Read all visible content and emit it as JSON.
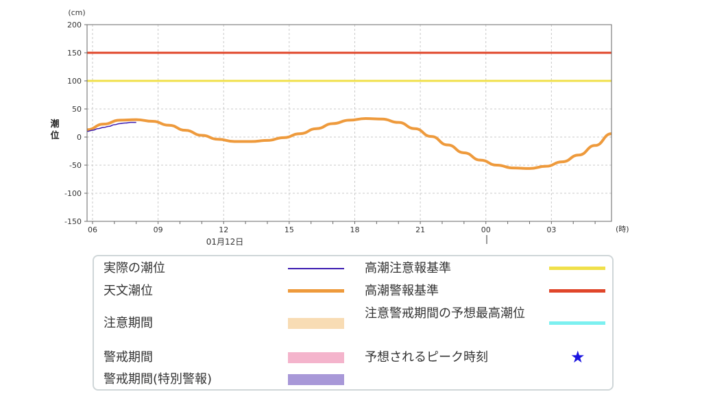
{
  "chart_data": {
    "type": "line",
    "unit_label": "(cm)",
    "ylabel": "潮位",
    "xunit_label": "(時)",
    "date_label": "01月12日",
    "ylim": [
      -150,
      200
    ],
    "yticks": [
      200,
      150,
      100,
      50,
      0,
      -50,
      -100,
      -150
    ],
    "x_start_hour": 5.75,
    "x_end_hour": 29.75,
    "xticks": [
      {
        "hour": 6,
        "label": "06"
      },
      {
        "hour": 9,
        "label": "09"
      },
      {
        "hour": 12,
        "label": "12"
      },
      {
        "hour": 15,
        "label": "15"
      },
      {
        "hour": 18,
        "label": "18"
      },
      {
        "hour": 21,
        "label": "21"
      },
      {
        "hour": 24,
        "label": "00"
      },
      {
        "hour": 27,
        "label": "03"
      }
    ],
    "grid": true,
    "thresholds": [
      {
        "name": "高潮警報基準",
        "value": 150,
        "color": "#e0462a"
      },
      {
        "name": "高潮注意報基準",
        "value": 100,
        "color": "#f0e04a"
      }
    ],
    "series": [
      {
        "name": "天文潮位",
        "color": "#ee9a3c",
        "points": [
          [
            5.75,
            13
          ],
          [
            6.5,
            23
          ],
          [
            7.25,
            30
          ],
          [
            8,
            31
          ],
          [
            8.75,
            28
          ],
          [
            9.5,
            21
          ],
          [
            10.25,
            12
          ],
          [
            11,
            3
          ],
          [
            11.75,
            -4
          ],
          [
            12.5,
            -8
          ],
          [
            13.25,
            -8
          ],
          [
            14,
            -6
          ],
          [
            14.75,
            -1
          ],
          [
            15.5,
            6
          ],
          [
            16.25,
            15
          ],
          [
            17,
            24
          ],
          [
            17.75,
            30
          ],
          [
            18.5,
            33
          ],
          [
            19.25,
            32
          ],
          [
            20,
            26
          ],
          [
            20.75,
            15
          ],
          [
            21.5,
            1
          ],
          [
            22.25,
            -14
          ],
          [
            23,
            -28
          ],
          [
            23.75,
            -41
          ],
          [
            24.5,
            -50
          ],
          [
            25.25,
            -55
          ],
          [
            26,
            -56
          ],
          [
            26.75,
            -52
          ],
          [
            27.5,
            -44
          ],
          [
            28.25,
            -32
          ],
          [
            29,
            -15
          ],
          [
            29.75,
            6
          ]
        ]
      },
      {
        "name": "実際の潮位",
        "color": "#3a1ab0",
        "points": [
          [
            5.75,
            10
          ],
          [
            6,
            12
          ],
          [
            6.25,
            15
          ],
          [
            6.5,
            17
          ],
          [
            6.75,
            19
          ],
          [
            7,
            22
          ],
          [
            7.25,
            24
          ],
          [
            7.5,
            25
          ],
          [
            7.75,
            26
          ],
          [
            8,
            26
          ]
        ]
      }
    ]
  },
  "legend": {
    "actual_tide": {
      "label": "実際の潮位",
      "color": "#3a1ab0"
    },
    "astronomical_tide": {
      "label": "天文潮位",
      "color": "#ee9a3c"
    },
    "advisory_period": {
      "label": "注意期間",
      "color": "#f8dcb4"
    },
    "warning_period": {
      "label": "警戒期間",
      "color": "#f4b4cc"
    },
    "warning_period_special": {
      "label": "警戒期間(特別警報)",
      "color": "#a898d8"
    },
    "advisory_threshold": {
      "label": "高潮注意報基準",
      "color": "#f0e04a"
    },
    "warning_threshold": {
      "label": "高潮警報基準",
      "color": "#e0462a"
    },
    "predicted_max": {
      "label": "注意警戒期間の予想最高潮位",
      "color": "#7cf0f0"
    },
    "predicted_peak": {
      "label": "予想されるピーク時刻",
      "color": "#1a14e0",
      "icon": "star-icon"
    }
  }
}
